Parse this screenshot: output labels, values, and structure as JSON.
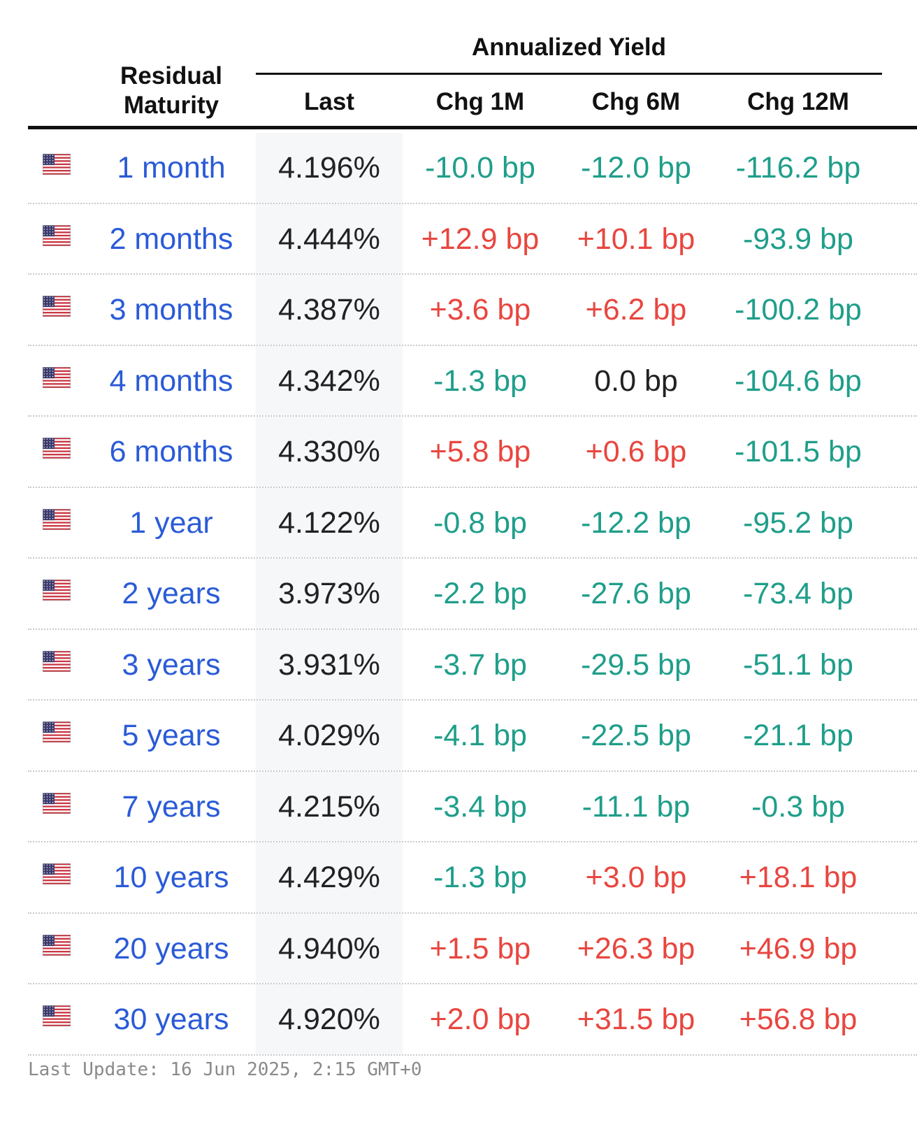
{
  "header": {
    "group_title": "Annualized Yield",
    "maturity_line1": "Residual",
    "maturity_line2": "Maturity",
    "col_last": "Last",
    "col_chg_1m": "Chg 1M",
    "col_chg_6m": "Chg 6M",
    "col_chg_12m": "Chg 12M"
  },
  "colors": {
    "positive": "#e8463f",
    "negative": "#1f9e8a",
    "neutral": "#222222",
    "link": "#2a5bd7"
  },
  "flag_icon": "us-flag-icon",
  "rows": [
    {
      "maturity": "1 month",
      "last": "4.196%",
      "chg_1m": "-10.0 bp",
      "chg_6m": "-12.0 bp",
      "chg_12m": "-116.2 bp"
    },
    {
      "maturity": "2 months",
      "last": "4.444%",
      "chg_1m": "+12.9 bp",
      "chg_6m": "+10.1 bp",
      "chg_12m": "-93.9 bp"
    },
    {
      "maturity": "3 months",
      "last": "4.387%",
      "chg_1m": "+3.6 bp",
      "chg_6m": "+6.2 bp",
      "chg_12m": "-100.2 bp"
    },
    {
      "maturity": "4 months",
      "last": "4.342%",
      "chg_1m": "-1.3 bp",
      "chg_6m": "0.0 bp",
      "chg_12m": "-104.6 bp"
    },
    {
      "maturity": "6 months",
      "last": "4.330%",
      "chg_1m": "+5.8 bp",
      "chg_6m": "+0.6 bp",
      "chg_12m": "-101.5 bp"
    },
    {
      "maturity": "1 year",
      "last": "4.122%",
      "chg_1m": "-0.8 bp",
      "chg_6m": "-12.2 bp",
      "chg_12m": "-95.2 bp"
    },
    {
      "maturity": "2 years",
      "last": "3.973%",
      "chg_1m": "-2.2 bp",
      "chg_6m": "-27.6 bp",
      "chg_12m": "-73.4 bp"
    },
    {
      "maturity": "3 years",
      "last": "3.931%",
      "chg_1m": "-3.7 bp",
      "chg_6m": "-29.5 bp",
      "chg_12m": "-51.1 bp"
    },
    {
      "maturity": "5 years",
      "last": "4.029%",
      "chg_1m": "-4.1 bp",
      "chg_6m": "-22.5 bp",
      "chg_12m": "-21.1 bp"
    },
    {
      "maturity": "7 years",
      "last": "4.215%",
      "chg_1m": "-3.4 bp",
      "chg_6m": "-11.1 bp",
      "chg_12m": "-0.3 bp"
    },
    {
      "maturity": "10 years",
      "last": "4.429%",
      "chg_1m": "-1.3 bp",
      "chg_6m": "+3.0 bp",
      "chg_12m": "+18.1 bp"
    },
    {
      "maturity": "20 years",
      "last": "4.940%",
      "chg_1m": "+1.5 bp",
      "chg_6m": "+26.3 bp",
      "chg_12m": "+46.9 bp"
    },
    {
      "maturity": "30 years",
      "last": "4.920%",
      "chg_1m": "+2.0 bp",
      "chg_6m": "+31.5 bp",
      "chg_12m": "+56.8 bp"
    }
  ],
  "footer": {
    "last_update": "Last Update: 16 Jun 2025, 2:15 GMT+0"
  }
}
